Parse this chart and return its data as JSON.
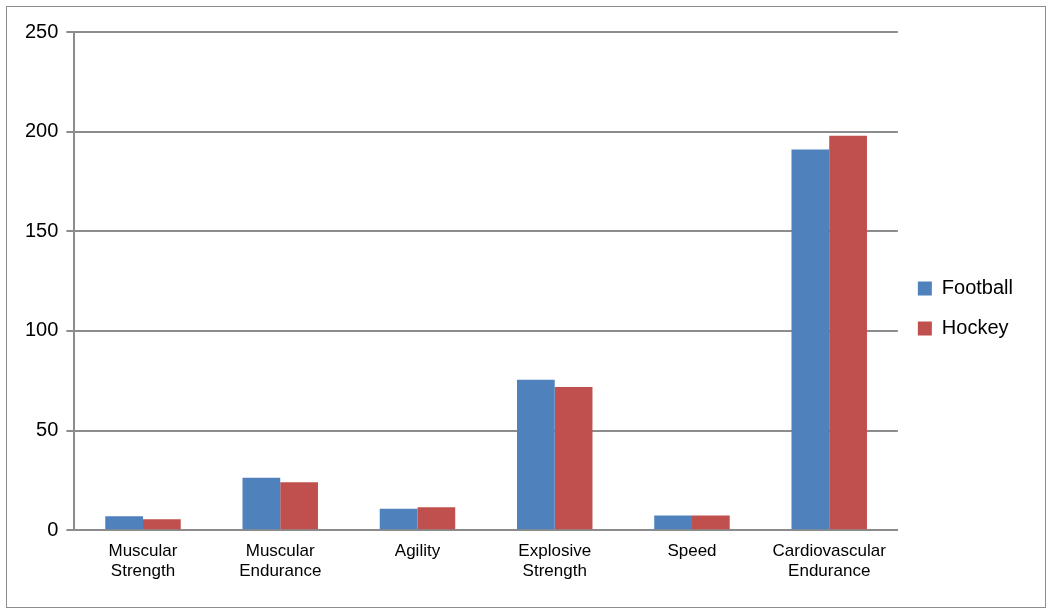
{
  "chart_data": {
    "type": "bar",
    "categories": [
      "Muscular Strength",
      "Muscular Endurance",
      "Agility",
      "Explosive Strength",
      "Speed",
      "Cardiovascular Endurance"
    ],
    "series": [
      {
        "name": "Football",
        "color": "#4f81bd",
        "values": [
          7,
          26.3,
          10.8,
          75.5,
          7.4,
          191
        ]
      },
      {
        "name": "Hockey",
        "color": "#c0504d",
        "values": [
          5.5,
          24,
          11.5,
          71.8,
          7.4,
          198
        ]
      }
    ],
    "ylim": [
      0,
      250
    ],
    "yticks": [
      0,
      50,
      100,
      150,
      200,
      250
    ],
    "grid": "y",
    "legend": "right"
  }
}
